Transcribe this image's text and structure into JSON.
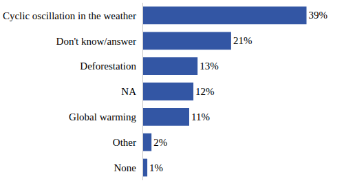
{
  "chart_data": {
    "type": "bar",
    "orientation": "horizontal",
    "categories": [
      "Cyclic oscillation in the weather",
      "Don't know/answer",
      "Deforestation",
      "NA",
      "Global warming",
      "Other",
      "None"
    ],
    "values": [
      39,
      21,
      13,
      12,
      11,
      2,
      1
    ],
    "value_labels": [
      "39%",
      "21%",
      "13%",
      "12%",
      "11%",
      "2%",
      "1%"
    ],
    "color": "#3356a4",
    "data_labels": true,
    "tick_labels": "y",
    "grid": false
  }
}
